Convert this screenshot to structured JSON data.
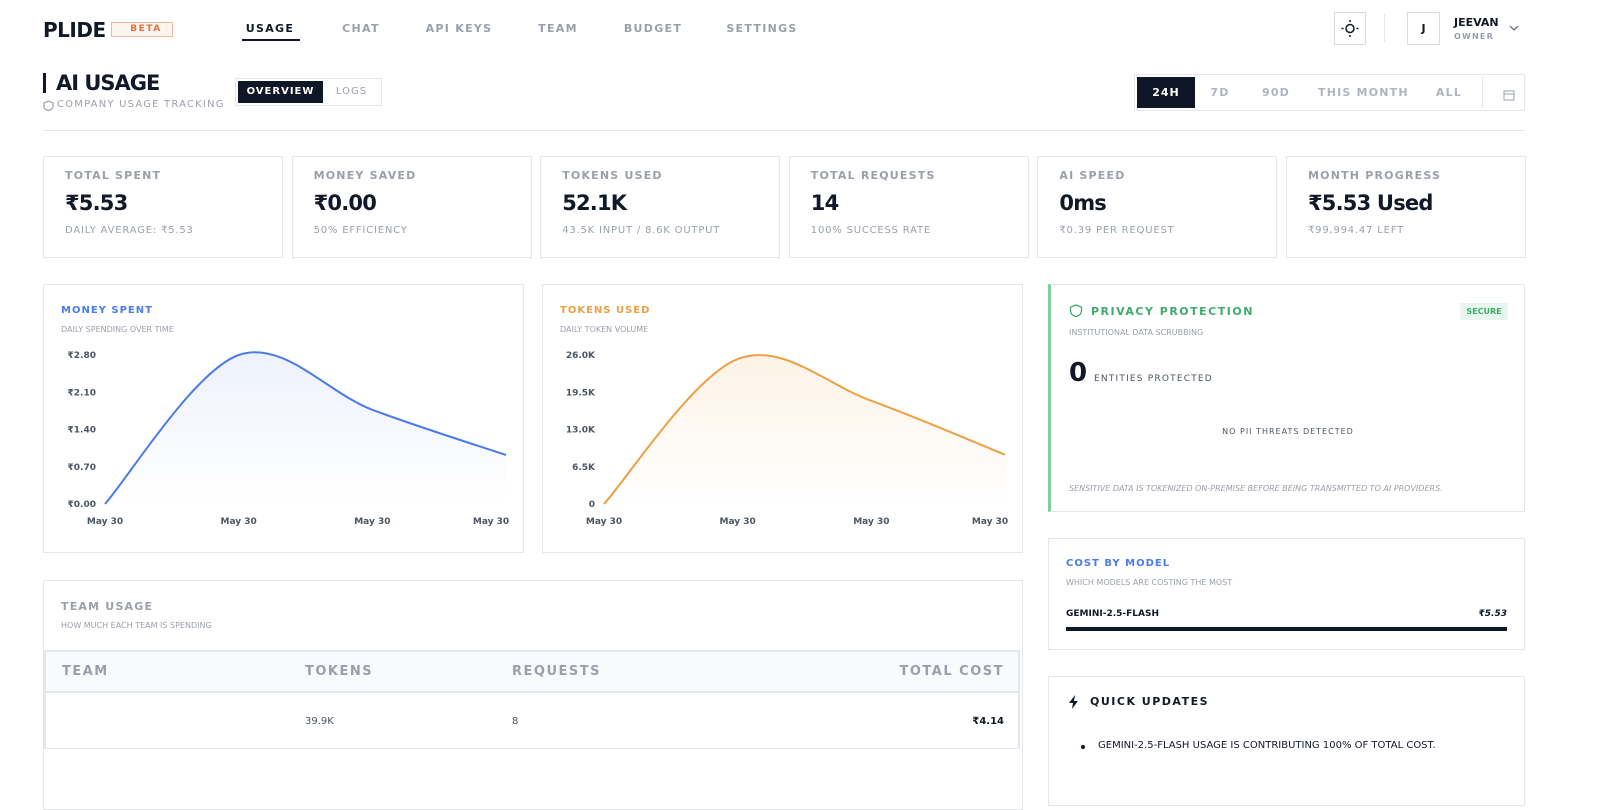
{
  "header": {
    "logo": "PLIDE",
    "badge": "BETA",
    "nav": [
      "USAGE",
      "CHAT",
      "API KEYS",
      "TEAM",
      "BUDGET",
      "SETTINGS"
    ],
    "user": {
      "initial": "J",
      "name": "JEEVAN",
      "role": "OWNER"
    }
  },
  "page": {
    "title": "AI USAGE",
    "subtitle": "COMPANY USAGE TRACKING",
    "tabs": [
      "OVERVIEW",
      "LOGS"
    ],
    "ranges": [
      "24H",
      "7D",
      "90D",
      "THIS MONTH",
      "ALL"
    ]
  },
  "stats": [
    {
      "label": "TOTAL SPENT",
      "value": "₹5.53",
      "note": "DAILY AVERAGE: ₹5.53"
    },
    {
      "label": "MONEY SAVED",
      "value": "₹0.00",
      "note": "50% EFFICIENCY"
    },
    {
      "label": "TOKENS USED",
      "value": "52.1K",
      "note": "43.5K INPUT / 8.6K OUTPUT"
    },
    {
      "label": "TOTAL REQUESTS",
      "value": "14",
      "note": "100% SUCCESS RATE"
    },
    {
      "label": "AI SPEED",
      "value": "0ms",
      "note": "₹0.39 PER REQUEST"
    },
    {
      "label": "MONTH PROGRESS",
      "value": "₹5.53 Used",
      "note": "₹99,994.47 LEFT"
    }
  ],
  "chart_data": [
    {
      "type": "line",
      "title": "MONEY SPENT",
      "subtitle": "DAILY SPENDING OVER TIME",
      "categories": [
        "May 30",
        "May 30",
        "May 30",
        "May 30"
      ],
      "values": [
        0,
        2.8,
        1.77,
        0.92
      ],
      "color": "#4a7be8",
      "fill": "#eef2fd",
      "ylim": [
        0,
        2.8
      ],
      "yticks": [
        {
          "value": 0,
          "label": "₹0.00"
        },
        {
          "value": 0.7,
          "label": "₹0.70"
        },
        {
          "value": 1.4,
          "label": "₹1.40"
        },
        {
          "value": 2.1,
          "label": "₹2.10"
        },
        {
          "value": 2.8,
          "label": "₹2.80"
        }
      ]
    },
    {
      "type": "line",
      "title": "TOKENS USED",
      "subtitle": "DAILY TOKEN VOLUME",
      "categories": [
        "May 30",
        "May 30",
        "May 30",
        "May 30"
      ],
      "values": [
        0,
        25300,
        18000,
        8600
      ],
      "color": "#eba043",
      "fill": "#fdf3e6",
      "ylim": [
        0,
        26000
      ],
      "yticks": [
        0,
        {
          "value": 6500,
          "label": "6.5K"
        },
        {
          "value": 13000,
          "label": "13.0K"
        },
        {
          "value": 19500,
          "label": "19.5K"
        },
        {
          "value": 26000,
          "label": "26.0K"
        }
      ]
    }
  ],
  "privacy": {
    "title": "PRIVACY PROTECTION",
    "badge": "SECURE",
    "subtitle": "INSTITUTIONAL DATA SCRUBBING",
    "count": 0,
    "count_label": "ENTITIES PROTECTED",
    "status": "NO PII THREATS DETECTED",
    "note": "SENSITIVE DATA IS TOKENIZED ON-PREMISE BEFORE BEING TRANSMITTED TO AI PROVIDERS."
  },
  "cost_by_model": {
    "title": "COST BY MODEL",
    "subtitle": "WHICH MODELS ARE COSTING THE MOST",
    "models": [
      {
        "name": "GEMINI-2.5-FLASH",
        "cost": "₹5.53"
      }
    ]
  },
  "team_usage": {
    "title": "TEAM USAGE",
    "subtitle": "HOW MUCH EACH TEAM IS SPENDING",
    "columns": [
      "TEAM",
      "TOKENS",
      "REQUESTS",
      "TOTAL COST"
    ],
    "rows": [
      {
        "tokens": "39.9K",
        "requests": "8",
        "total_cost": "₹4.14"
      }
    ]
  },
  "quick_updates": {
    "title": "QUICK UPDATES",
    "items": [
      "GEMINI-2.5-FLASH USAGE IS CONTRIBUTING 100% OF TOTAL COST."
    ]
  }
}
